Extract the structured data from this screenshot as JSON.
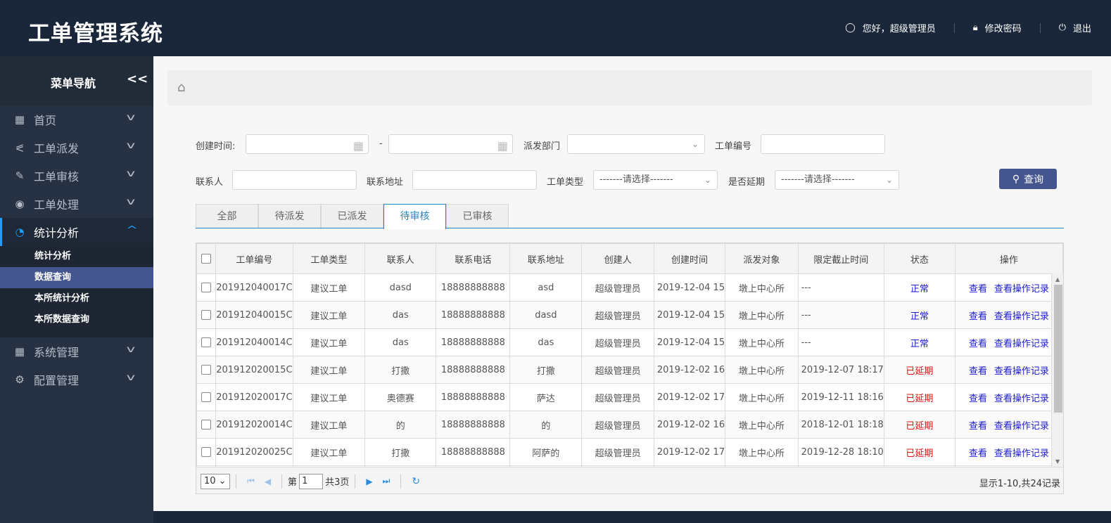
{
  "header": {
    "title": "工单管理系统",
    "greeting": "您好，超级管理员",
    "change_password": "修改密码",
    "logout": "退出"
  },
  "sidebar": {
    "title": "菜单导航",
    "collapse": "<<",
    "items": [
      {
        "label": "首页",
        "icon": "grid-icon"
      },
      {
        "label": "工单派发",
        "icon": "share-icon"
      },
      {
        "label": "工单审核",
        "icon": "edit-icon"
      },
      {
        "label": "工单处理",
        "icon": "database-icon"
      },
      {
        "label": "统计分析",
        "icon": "pie-chart-icon",
        "expanded": true
      },
      {
        "label": "系统管理",
        "icon": "grid-icon"
      },
      {
        "label": "配置管理",
        "icon": "gear-icon"
      }
    ],
    "sub_items": [
      {
        "label": "统计分析"
      },
      {
        "label": "数据查询",
        "selected": true
      },
      {
        "label": "本所统计分析"
      },
      {
        "label": "本所数据查询"
      }
    ]
  },
  "filters": {
    "created_time": "创建时间:",
    "dash": "-",
    "dept": "派发部门",
    "order_no": "工单编号",
    "contact": "联系人",
    "address": "联系地址",
    "order_type": "工单类型",
    "order_type_value": "-------请选择-------",
    "delayed": "是否延期",
    "delayed_value": "-------请选择-------",
    "query_button": "查询"
  },
  "tabs": [
    "全部",
    "待派发",
    "已派发",
    "待审核",
    "已审核"
  ],
  "active_tab": "待审核",
  "table": {
    "columns": [
      "工单编号",
      "工单类型",
      "联系人",
      "联系电话",
      "联系地址",
      "创建人",
      "创建时间",
      "派发对象",
      "限定截止时间",
      "状态",
      "操作"
    ],
    "rows": [
      [
        "201912040017C",
        "建议工单",
        "dasd",
        "18888888888",
        "asd",
        "超级管理员",
        "2019-12-04 15",
        "墩上中心所",
        "---",
        "正常"
      ],
      [
        "201912040015C",
        "建议工单",
        "das",
        "18888888888",
        "dasd",
        "超级管理员",
        "2019-12-04 15",
        "墩上中心所",
        "---",
        "正常"
      ],
      [
        "201912040014C",
        "建议工单",
        "das",
        "18888888888",
        "das",
        "超级管理员",
        "2019-12-04 15",
        "墩上中心所",
        "---",
        "正常"
      ],
      [
        "201912020015C",
        "建议工单",
        "打撒",
        "18888888888",
        "打撒",
        "超级管理员",
        "2019-12-02 16",
        "墩上中心所",
        "2019-12-07 18:17",
        "已延期"
      ],
      [
        "201912020017C",
        "建议工单",
        "奥德赛",
        "18888888888",
        "萨达",
        "超级管理员",
        "2019-12-02 17",
        "墩上中心所",
        "2019-12-11 18:16",
        "已延期"
      ],
      [
        "201912020014C",
        "建议工单",
        "的",
        "18888888888",
        "的",
        "超级管理员",
        "2019-12-02 16",
        "墩上中心所",
        "2018-12-01 18:18",
        "已延期"
      ],
      [
        "201912020025C",
        "建议工单",
        "打撒",
        "18888888888",
        "阿萨的",
        "超级管理员",
        "2019-12-02 17",
        "墩上中心所",
        "2019-12-28 18:10",
        "已延期"
      ]
    ],
    "actions": [
      "查看",
      "查看操作记录"
    ],
    "status_colors": {
      "正常": "#1a1ad0",
      "已延期": "#e01010"
    }
  },
  "pager": {
    "page_size": "10",
    "page_prefix": "第",
    "page": "1",
    "total_pages": "共3页",
    "info": "显示1-10,共24记录"
  },
  "colors": {
    "header_bg": "#1a2639",
    "accent": "#44558f",
    "active_link": "#1e9fff"
  }
}
